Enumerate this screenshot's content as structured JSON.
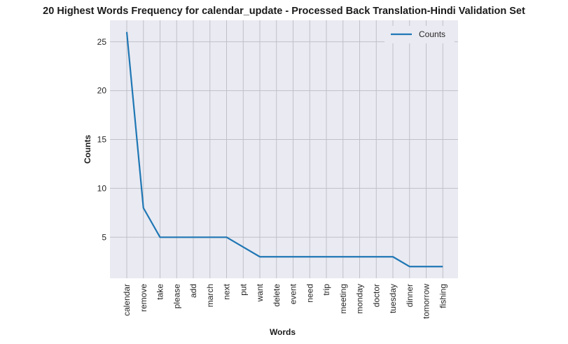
{
  "chart_data": {
    "type": "line",
    "title": "20 Highest Words Frequency for calendar_update - Processed Back Translation-Hindi Validation Set",
    "xlabel": "Words",
    "ylabel": "Counts",
    "categories": [
      "calendar",
      "remove",
      "take",
      "please",
      "add",
      "march",
      "next",
      "put",
      "want",
      "delete",
      "event",
      "need",
      "trip",
      "meeting",
      "monday",
      "doctor",
      "tuesday",
      "dinner",
      "tomorrow",
      "fishing"
    ],
    "series": [
      {
        "name": "Counts",
        "values": [
          26,
          8,
          5,
          5,
          5,
          5,
          5,
          4,
          3,
          3,
          3,
          3,
          3,
          3,
          3,
          3,
          3,
          2,
          2,
          2
        ]
      }
    ],
    "ylim": [
      0.8,
      27.2
    ],
    "yticks": [
      5,
      10,
      15,
      20,
      25
    ],
    "grid": true,
    "legend_position": "top-right",
    "colors": {
      "line": "#1f77b4",
      "background": "#eaeaf2",
      "grid": "#c0c0c8"
    }
  }
}
